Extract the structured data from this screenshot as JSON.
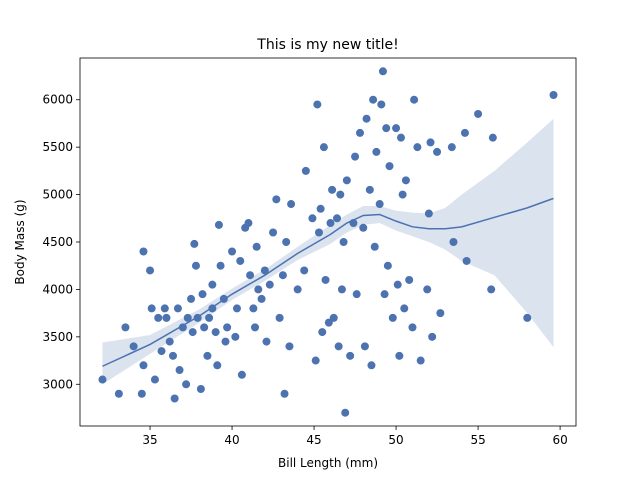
{
  "chart_data": {
    "type": "scatter",
    "title": "This is my new title!",
    "x_label": "Bill Length (mm)",
    "y_label": "Body Mass (g)",
    "xlim": [
      30.73,
      60.97
    ],
    "ylim": [
      2560,
      6440
    ],
    "xticks": [
      35,
      40,
      45,
      50,
      55,
      60
    ],
    "yticks": [
      3000,
      3500,
      4000,
      4500,
      5000,
      5500,
      6000
    ],
    "series": [
      {
        "color": "#4c72b0",
        "x": [
          32.1,
          33.1,
          33.5,
          34,
          34.5,
          34.6,
          35,
          34.6,
          35.1,
          35.3,
          35.5,
          35.7,
          35.9,
          36,
          36.2,
          36.4,
          36.5,
          36.7,
          36.8,
          37,
          37.2,
          37.3,
          37.5,
          37.6,
          37.7,
          37.8,
          37.9,
          38.1,
          38.2,
          38.3,
          38.5,
          38.6,
          38.8,
          38.8,
          39,
          39.1,
          39.2,
          39.3,
          39.5,
          39.6,
          39.7,
          40,
          40.2,
          40.3,
          40.5,
          40.6,
          40.8,
          41,
          41.1,
          41.3,
          41.4,
          41.5,
          41.6,
          41.8,
          42,
          42.1,
          42.3,
          42.5,
          42.7,
          42.9,
          43.1,
          43.2,
          43.3,
          43.5,
          43.6,
          44,
          44.4,
          44.5,
          44.9,
          45.1,
          45.2,
          45.3,
          45.4,
          45.5,
          45.6,
          45.7,
          45.9,
          46,
          46.1,
          46.2,
          46.4,
          46.5,
          46.6,
          46.7,
          46.8,
          46.9,
          47,
          47.2,
          47.4,
          47.5,
          47.6,
          47.8,
          48,
          48.1,
          48.2,
          48.4,
          48.5,
          48.6,
          48.7,
          48.8,
          49,
          49.1,
          49.2,
          49.3,
          49.4,
          49.5,
          49.6,
          49.8,
          50,
          50.1,
          50.2,
          50.3,
          50.4,
          50.5,
          50.6,
          50.8,
          51,
          51.1,
          51.3,
          51.5,
          51.9,
          52,
          52.1,
          52.2,
          52.5,
          52.7,
          53.4,
          53.5,
          54.2,
          54.3,
          55,
          55.8,
          55.9,
          58,
          59.6
        ],
        "values": [
          3050,
          2900,
          3600,
          3400,
          2900,
          4400,
          4200,
          3200,
          3800,
          3050,
          3700,
          3350,
          3800,
          3700,
          3450,
          3300,
          2850,
          3800,
          3150,
          3600,
          3000,
          3700,
          3900,
          3550,
          4480,
          4250,
          3700,
          2950,
          3950,
          3600,
          3300,
          3700,
          3800,
          4050,
          3550,
          3200,
          4680,
          4250,
          3900,
          3450,
          3600,
          4400,
          3500,
          3800,
          4300,
          3100,
          4650,
          4700,
          4150,
          3800,
          3600,
          4450,
          4000,
          3900,
          4200,
          3450,
          4050,
          4600,
          4950,
          3700,
          4150,
          2900,
          4500,
          3400,
          4900,
          4000,
          4200,
          5250,
          4750,
          3250,
          5950,
          4600,
          4850,
          3550,
          5500,
          4100,
          3650,
          4700,
          5050,
          3700,
          4750,
          3400,
          5000,
          4000,
          4500,
          2700,
          5150,
          3300,
          4700,
          5400,
          3950,
          5650,
          4650,
          3400,
          5800,
          5050,
          3200,
          6000,
          4450,
          5450,
          4900,
          5950,
          6300,
          3950,
          5700,
          4250,
          5300,
          3700,
          5700,
          4050,
          3300,
          5600,
          5000,
          3800,
          5150,
          4100,
          3600,
          6000,
          5500,
          3250,
          4000,
          4800,
          5550,
          3500,
          5450,
          3750,
          5500,
          4500,
          5650,
          4300,
          5850,
          4000,
          5600,
          3700,
          6050
        ]
      }
    ],
    "fit": {
      "color": "#4c72b0",
      "x": [
        32.1,
        35,
        38,
        40,
        42,
        44,
        46,
        47,
        48,
        49,
        50,
        51,
        52,
        53,
        54,
        56,
        58,
        59.6
      ],
      "values": [
        3190,
        3420,
        3720,
        3950,
        4150,
        4380,
        4580,
        4700,
        4780,
        4790,
        4720,
        4660,
        4640,
        4640,
        4660,
        4760,
        4860,
        4960
      ],
      "lower": [
        3000,
        3320,
        3650,
        3890,
        4090,
        4310,
        4480,
        4600,
        4680,
        4700,
        4620,
        4560,
        4500,
        4420,
        4300,
        4150,
        3750,
        3390
      ],
      "upper": [
        3440,
        3520,
        3790,
        4010,
        4210,
        4450,
        4680,
        4790,
        4880,
        4880,
        4830,
        4810,
        4800,
        4860,
        5000,
        5250,
        5550,
        5800
      ]
    }
  }
}
